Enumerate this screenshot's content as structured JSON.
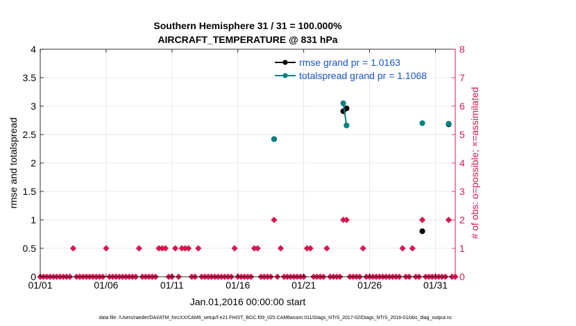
{
  "chart_data": {
    "type": "line",
    "title_line1": "Southern Hemisphere 31 / 31 = 100.000%",
    "title_line2": "AIRCRAFT_TEMPERATURE @ 831 hPa",
    "xlabel": "Jan.01,2016 00:00:00 start",
    "ylabel_left": "rmse and totalspread",
    "ylabel_right": "# of obs: o=possible; ×=assimilated",
    "footer": "data file: /Users/raeder/DAI/ATM_forcXX/CAM6_setup/f.e21.FHIST_BGC.f09_025.CAM6assim.011/Diags_NTrS_2017-02/Diags_NTrS_2016-01/obs_diag_output.nc",
    "xlim": [
      1,
      32.5
    ],
    "ylim_left": [
      0,
      4
    ],
    "ylim_right": [
      0,
      8
    ],
    "x_ticks": [
      {
        "value": 1,
        "label": "01/01"
      },
      {
        "value": 6,
        "label": "01/06"
      },
      {
        "value": 11,
        "label": "01/11"
      },
      {
        "value": 16,
        "label": "01/16"
      },
      {
        "value": 21,
        "label": "01/21"
      },
      {
        "value": 26,
        "label": "01/26"
      },
      {
        "value": 31,
        "label": "01/31"
      }
    ],
    "y_left_ticks": [
      "0",
      "0.5",
      "1",
      "1.5",
      "2",
      "2.5",
      "3",
      "3.5",
      "4"
    ],
    "y_right_ticks": [
      "0",
      "1",
      "2",
      "3",
      "4",
      "5",
      "6",
      "7",
      "8"
    ],
    "series": [
      {
        "name": "rmse grand pr = 1.0163",
        "color": "#000000",
        "segments": [
          [
            [
              18.75,
              2.42
            ]
          ],
          [
            [
              24.0,
              2.91
            ],
            [
              24.25,
              2.96
            ]
          ],
          [
            [
              30.0,
              0.8
            ]
          ],
          [
            [
              32.0,
              2.68
            ]
          ]
        ]
      },
      {
        "name": "totalspread grand pr = 1.1068",
        "color": "#008080",
        "segments": [
          [
            [
              18.75,
              2.42
            ]
          ],
          [
            [
              24.0,
              3.05
            ],
            [
              24.25,
              2.66
            ]
          ],
          [
            [
              30.0,
              2.7
            ]
          ],
          [
            [
              32.0,
              2.69
            ]
          ]
        ]
      }
    ],
    "obs_count": {
      "color": "#d6174f",
      "step_days": 0.25,
      "nonzero": [
        {
          "x": 3.5,
          "count": 1
        },
        {
          "x": 6.0,
          "count": 1
        },
        {
          "x": 8.5,
          "count": 1
        },
        {
          "x": 10.0,
          "count": 1
        },
        {
          "x": 10.25,
          "count": 1
        },
        {
          "x": 10.5,
          "count": 1
        },
        {
          "x": 11.25,
          "count": 1
        },
        {
          "x": 11.75,
          "count": 1
        },
        {
          "x": 12.0,
          "count": 1
        },
        {
          "x": 12.25,
          "count": 1
        },
        {
          "x": 13.0,
          "count": 1
        },
        {
          "x": 15.75,
          "count": 1
        },
        {
          "x": 17.25,
          "count": 1
        },
        {
          "x": 17.5,
          "count": 1
        },
        {
          "x": 18.75,
          "count": 2
        },
        {
          "x": 19.25,
          "count": 1
        },
        {
          "x": 21.25,
          "count": 1
        },
        {
          "x": 21.5,
          "count": 1
        },
        {
          "x": 22.75,
          "count": 1
        },
        {
          "x": 24.0,
          "count": 2
        },
        {
          "x": 24.25,
          "count": 2
        },
        {
          "x": 25.5,
          "count": 1
        },
        {
          "x": 28.5,
          "count": 1
        },
        {
          "x": 29.25,
          "count": 1
        },
        {
          "x": 30.0,
          "count": 2
        },
        {
          "x": 32.0,
          "count": 2
        }
      ]
    }
  }
}
